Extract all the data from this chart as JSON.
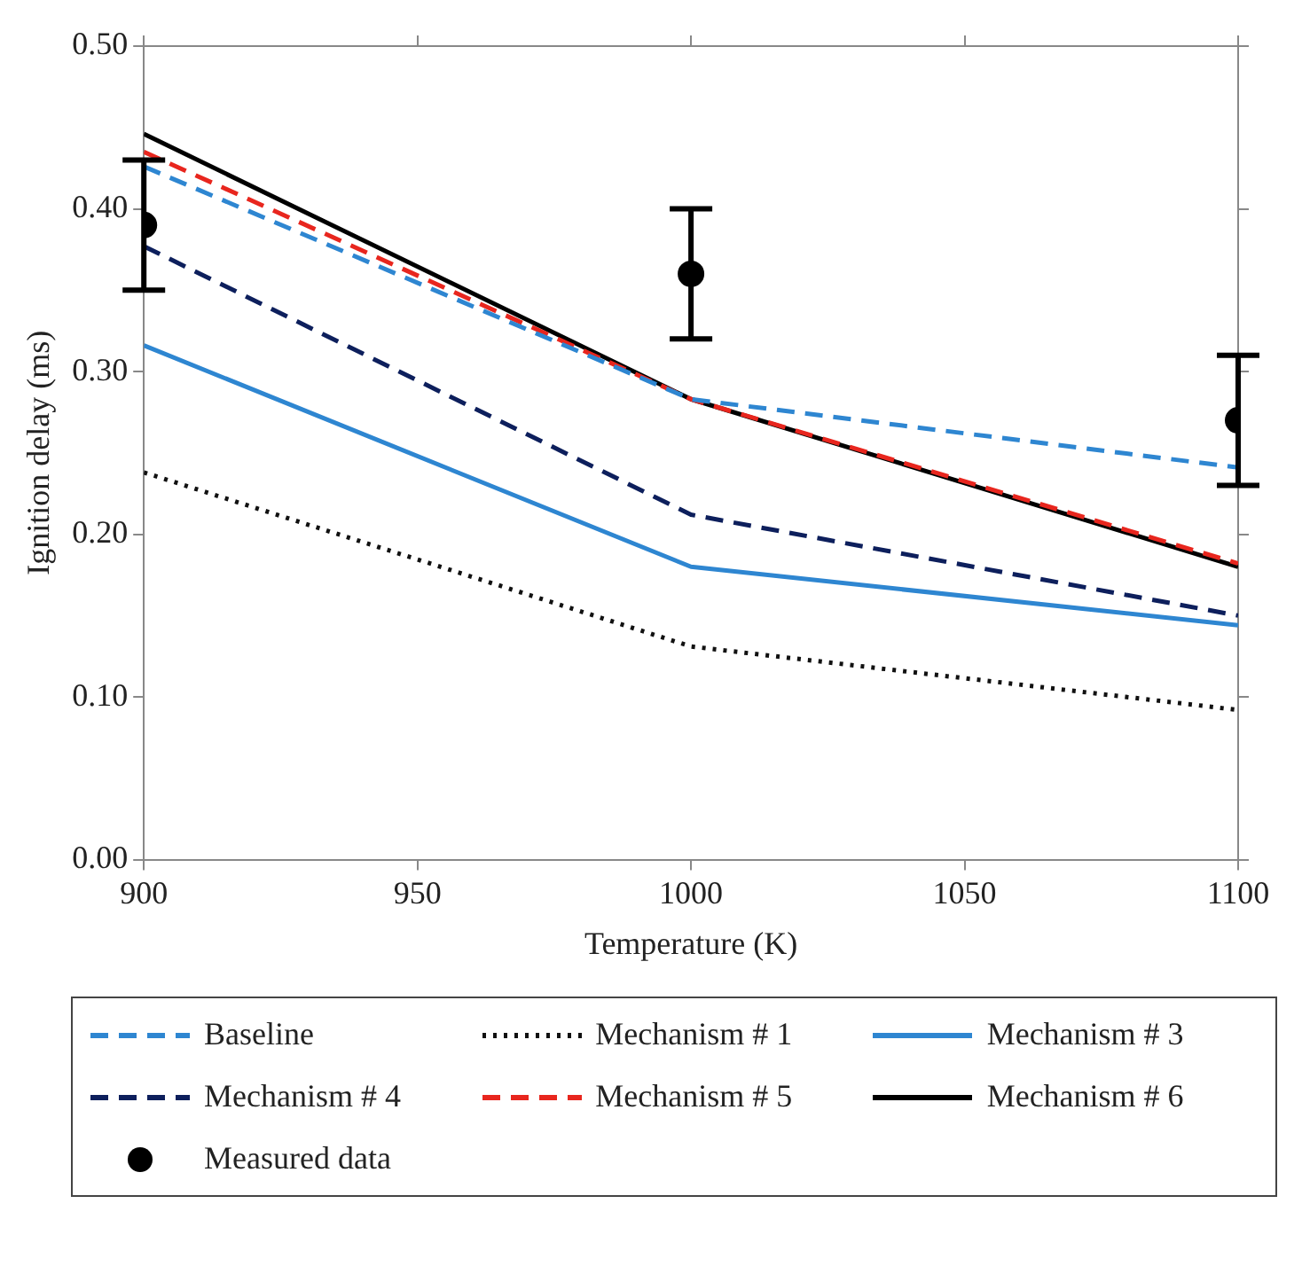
{
  "chart_data": {
    "type": "line",
    "xlabel": "Temperature (K)",
    "ylabel": "Ignition delay (ms)",
    "x": [
      900,
      1000,
      1100
    ],
    "xlim": [
      900,
      1100
    ],
    "xticks": [
      900,
      950,
      1000,
      1050,
      1100
    ],
    "ylim": [
      0,
      0.5
    ],
    "yticks": [
      {
        "value": 0,
        "label": "0.00"
      },
      {
        "value": 0.1,
        "label": "0.10"
      },
      {
        "value": 0.2,
        "label": "0.20"
      },
      {
        "value": 0.3,
        "label": "0.30"
      },
      {
        "value": 0.4,
        "label": "0.40"
      },
      {
        "value": 0.5,
        "label": "0.50"
      }
    ],
    "grid": false,
    "legend": "bottom",
    "marker": "none",
    "series": [
      {
        "name": "Baseline",
        "color": "#2e86d1",
        "values": [
          0.426,
          0.283,
          0.241
        ],
        "line_style": "dashed"
      },
      {
        "name": "Mechanism # 1",
        "color": "#111111",
        "values": [
          0.238,
          0.131,
          0.092
        ],
        "line_style": "dotted"
      },
      {
        "name": "Mechanism # 3",
        "color": "#2e86d1",
        "values": [
          0.316,
          0.18,
          0.144
        ],
        "line_style": "solid"
      },
      {
        "name": "Mechanism # 4",
        "color": "#0d1f5c",
        "values": [
          0.377,
          0.212,
          0.15
        ],
        "line_style": "dashed"
      },
      {
        "name": "Mechanism # 5",
        "color": "#e8261e",
        "values": [
          0.435,
          0.283,
          0.182
        ],
        "line_style": "dashed"
      },
      {
        "name": "Mechanism # 6",
        "color": "#000000",
        "values": [
          0.446,
          0.283,
          0.18
        ],
        "line_style": "solid"
      },
      {
        "name": "Measured data",
        "type": "scatter",
        "color": "#000000",
        "marker": "circle",
        "values": [
          0.39,
          0.36,
          0.27
        ],
        "errors": [
          0.04,
          0.04,
          0.04
        ]
      }
    ]
  }
}
